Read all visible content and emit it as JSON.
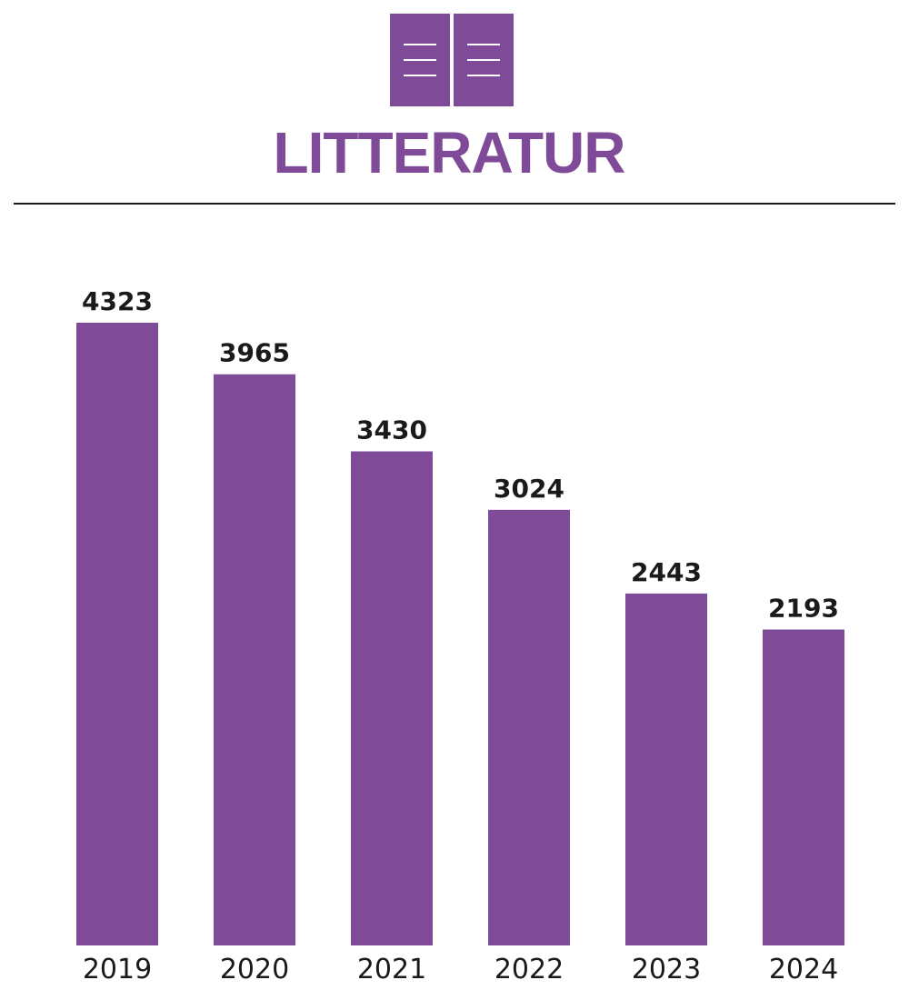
{
  "chart_data": {
    "type": "bar",
    "title": "LITTERATUR",
    "categories": [
      "2019",
      "2020",
      "2021",
      "2022",
      "2023",
      "2024"
    ],
    "values": [
      4323,
      3965,
      3430,
      3024,
      2443,
      2193
    ],
    "color": "#7f4a97"
  }
}
